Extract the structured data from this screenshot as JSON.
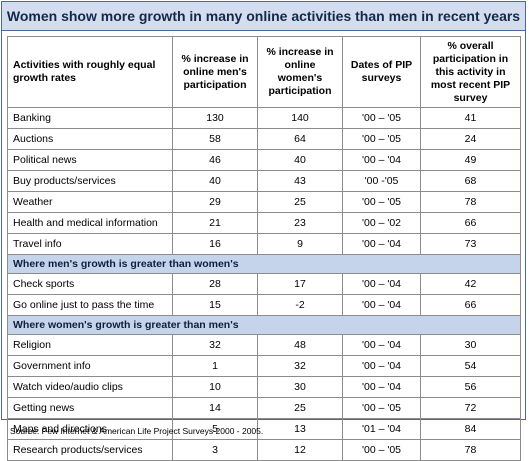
{
  "chart_data": {
    "type": "table",
    "title": "Women show more growth in many online activities than men in recent years",
    "columns": [
      "Activities with roughly equal growth rates",
      "% increase in online men's participation",
      "% increase in online women's participation",
      "Dates of PIP surveys",
      "% overall participation in this activity in most recent PIP survey"
    ],
    "groups": [
      {
        "header": "",
        "rows": [
          [
            "Banking",
            "130",
            "140",
            "'00 – '05",
            "41"
          ],
          [
            "Auctions",
            "58",
            "64",
            "'00 – '05",
            "24"
          ],
          [
            "Political news",
            "46",
            "40",
            "'00 – '04",
            "49"
          ],
          [
            "Buy products/services",
            "40",
            "43",
            "'00 -'05",
            "68"
          ],
          [
            "Weather",
            "29",
            "25",
            "'00 – '05",
            "78"
          ],
          [
            "Health and medical information",
            "21",
            "23",
            "'00 – '02",
            "66"
          ],
          [
            "Travel info",
            "16",
            "9",
            "'00 – '04",
            "73"
          ]
        ]
      },
      {
        "header": "Where men's growth is greater than women's",
        "rows": [
          [
            "Check sports",
            "28",
            "17",
            "'00 – '04",
            "42"
          ],
          [
            "Go online just to pass the time",
            "15",
            "-2",
            "'00 – '04",
            "66"
          ]
        ]
      },
      {
        "header": "Where women's growth is greater than men's",
        "rows": [
          [
            "Religion",
            "32",
            "48",
            "'00 – '04",
            "30"
          ],
          [
            "Government info",
            "1",
            "32",
            "'00 – '04",
            "54"
          ],
          [
            "Watch video/audio clips",
            "10",
            "30",
            "'00 – '04",
            "56"
          ],
          [
            "Getting news",
            "14",
            "25",
            "'00 – '05",
            "72"
          ],
          [
            "Maps and directions",
            "5",
            "13",
            "'01 – '04",
            "84"
          ],
          [
            "Research products/services",
            "3",
            "12",
            "'00 – '05",
            "78"
          ]
        ]
      }
    ],
    "source": "Source:  Pew Internet & American Life Project Surveys 2000 - 2005."
  }
}
